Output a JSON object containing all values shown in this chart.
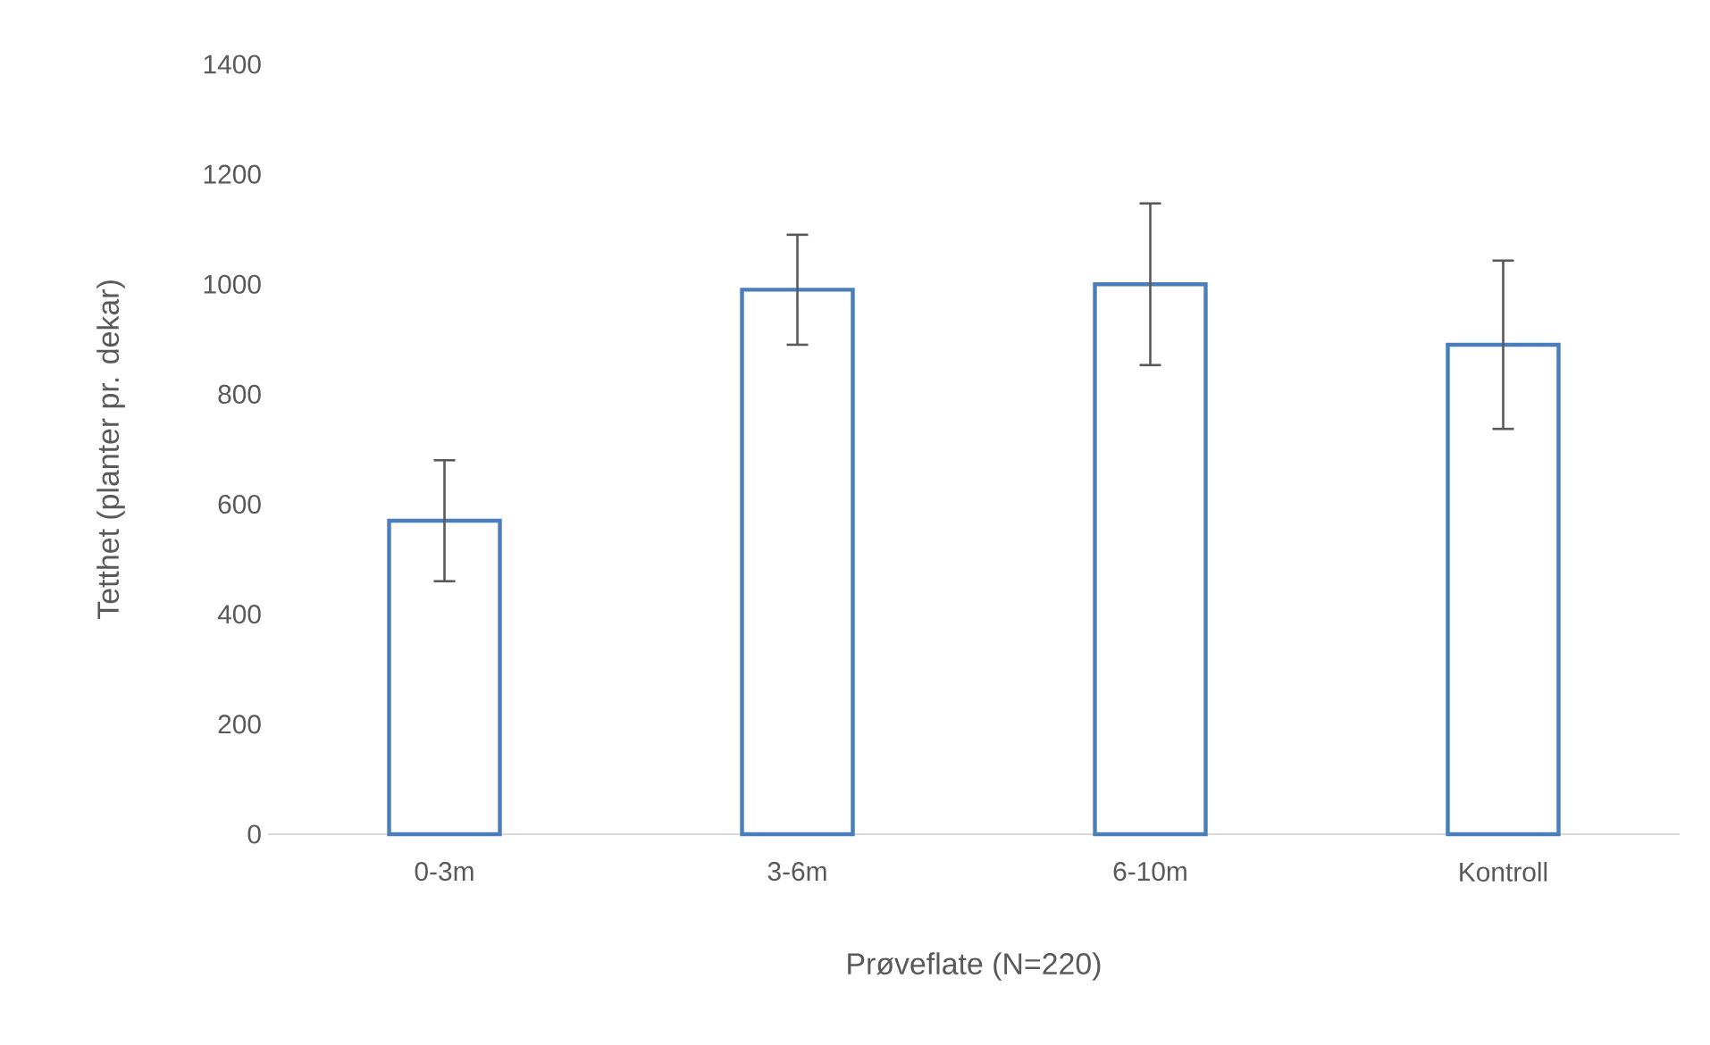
{
  "chart_data": {
    "type": "bar",
    "xlabel": "Prøveflate (N=220)",
    "ylabel": "Tetthet (planter pr. dekar)",
    "categories": [
      "0-3m",
      "3-6m",
      "6-10m",
      "Kontroll"
    ],
    "values": [
      570,
      990,
      1000,
      890
    ],
    "errors": [
      110,
      100,
      147,
      153
    ],
    "color": "#4a7ebb",
    "ylim": [
      0,
      1400
    ],
    "yticks": [
      0,
      200,
      400,
      600,
      800,
      1000,
      1200,
      1400
    ],
    "grid": false
  }
}
